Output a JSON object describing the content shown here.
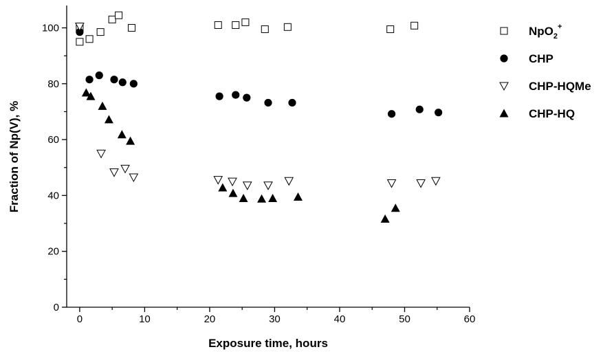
{
  "chart_data": {
    "type": "scatter",
    "xlabel": "Exposure time, hours",
    "ylabel": "Fraction of Np(V), %",
    "xlim": [
      -2,
      60
    ],
    "ylim": [
      0,
      108
    ],
    "xticks": [
      "0",
      "10",
      "20",
      "30",
      "40",
      "50",
      "60"
    ],
    "yticks": [
      "0",
      "20",
      "40",
      "60",
      "80",
      "100"
    ],
    "grid": false,
    "legend_position": "right",
    "series": [
      {
        "name": "NpO2+",
        "legend_base": "NpO",
        "legend_sub": "2",
        "legend_sup": "+",
        "marker": "open-square",
        "color": "#000000",
        "points": [
          [
            0,
            95
          ],
          [
            0,
            100
          ],
          [
            1.5,
            96
          ],
          [
            3.2,
            98.5
          ],
          [
            5,
            103
          ],
          [
            6,
            104.5
          ],
          [
            8,
            100
          ],
          [
            21.3,
            101
          ],
          [
            24,
            101
          ],
          [
            25.5,
            102
          ],
          [
            28.5,
            99.5
          ],
          [
            32,
            100.3
          ],
          [
            47.8,
            99.5
          ],
          [
            51.5,
            100.8
          ]
        ]
      },
      {
        "name": "CHP",
        "legend_base": "CHP",
        "marker": "filled-circle",
        "color": "#000000",
        "points": [
          [
            0,
            98.5
          ],
          [
            1.5,
            81.5
          ],
          [
            3,
            83
          ],
          [
            5.3,
            81.5
          ],
          [
            6.6,
            80.5
          ],
          [
            8.3,
            80
          ],
          [
            21.5,
            75.5
          ],
          [
            24,
            76
          ],
          [
            25.7,
            75
          ],
          [
            29,
            73.2
          ],
          [
            32.7,
            73.2
          ],
          [
            48,
            69.2
          ],
          [
            52.3,
            70.8
          ],
          [
            55.2,
            69.7
          ]
        ]
      },
      {
        "name": "CHP-HQMe",
        "legend_base": "CHP-HQMe",
        "marker": "open-down-triangle",
        "color": "#000000",
        "points": [
          [
            0,
            100.5
          ],
          [
            3.3,
            55
          ],
          [
            5.3,
            48.3
          ],
          [
            7,
            49.6
          ],
          [
            8.3,
            46.5
          ],
          [
            21.3,
            45.6
          ],
          [
            23.5,
            45
          ],
          [
            25.8,
            43.6
          ],
          [
            29,
            43.6
          ],
          [
            32.2,
            45.2
          ],
          [
            48,
            44.4
          ],
          [
            52.5,
            44.4
          ],
          [
            54.8,
            45.2
          ]
        ]
      },
      {
        "name": "CHP-HQ",
        "legend_base": "CHP-HQ",
        "marker": "filled-up-triangle",
        "color": "#000000",
        "points": [
          [
            1,
            76.8
          ],
          [
            1.7,
            75.5
          ],
          [
            3.5,
            72
          ],
          [
            4.5,
            67.2
          ],
          [
            6.5,
            61.8
          ],
          [
            7.8,
            59.5
          ],
          [
            22,
            42.8
          ],
          [
            23.6,
            40.8
          ],
          [
            25.2,
            39
          ],
          [
            28,
            38.8
          ],
          [
            29.7,
            39
          ],
          [
            33.6,
            39.5
          ],
          [
            47,
            31.6
          ],
          [
            48.6,
            35.5
          ]
        ]
      }
    ]
  }
}
